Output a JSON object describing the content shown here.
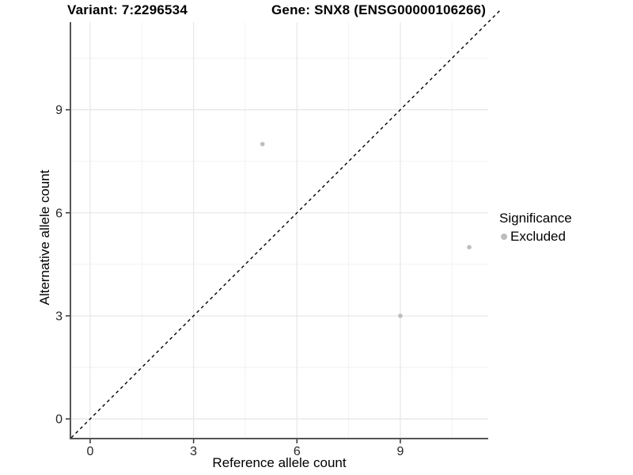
{
  "figure": {
    "title_left": "Variant: 7:2296534",
    "title_right": "Gene: SNX8 (ENSG00000106266)"
  },
  "chart_data": {
    "type": "scatter",
    "title": "Variant: 7:2296534   Gene: SNX8 (ENSG00000106266)",
    "xlabel": "Reference allele count",
    "ylabel": "Alternative allele count",
    "xlim": [
      -0.55,
      11.55
    ],
    "ylim": [
      -0.55,
      11.55
    ],
    "x_ticks": [
      0,
      3,
      6,
      9
    ],
    "y_ticks": [
      0,
      3,
      6,
      9
    ],
    "x_minor_ticks": [
      1.5,
      4.5,
      7.5,
      10.5
    ],
    "y_minor_ticks": [
      1.5,
      4.5,
      7.5,
      10.5
    ],
    "grid": "major+minor",
    "identity_line": {
      "slope": 1,
      "intercept": 0,
      "linestyle": "dashed",
      "color": "#000000"
    },
    "series": [
      {
        "name": "Excluded",
        "color": "#bdbdbd",
        "marker": "circle",
        "points": [
          {
            "x": 5,
            "y": 8
          },
          {
            "x": 9,
            "y": 3
          },
          {
            "x": 11,
            "y": 5
          }
        ]
      }
    ],
    "legend": {
      "title": "Significance",
      "position": "right",
      "items": [
        {
          "label": "Excluded",
          "color": "#bdbdbd"
        }
      ]
    }
  },
  "colors": {
    "background": "#ffffff",
    "grid_major": "#e6e6e6",
    "grid_minor": "#f2f2f2",
    "axis_line": "#555555",
    "tick_mark": "#333333",
    "tick_text": "#262626",
    "point": "#bdbdbd",
    "dashed_line": "#000000"
  }
}
